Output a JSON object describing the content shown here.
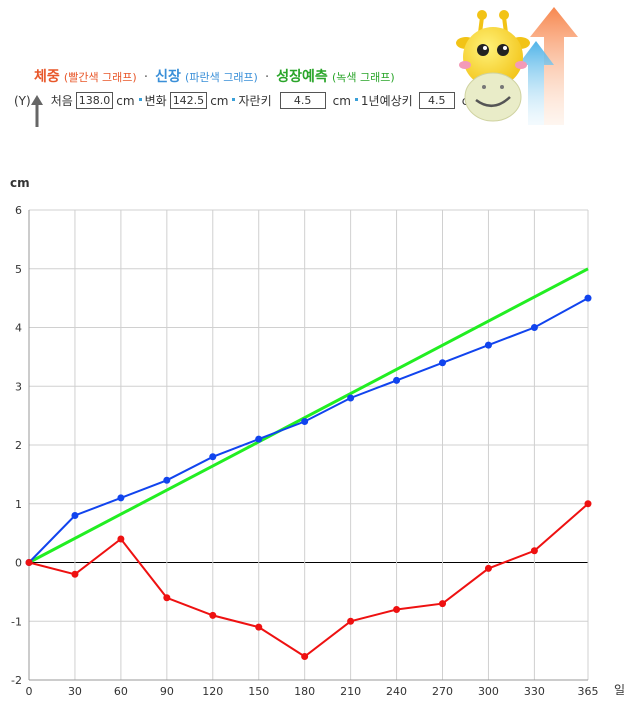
{
  "header": {
    "weight_title": "체중",
    "weight_sub": "(빨간색 그래프)",
    "height_title": "신장",
    "height_sub": "(파란색 그래프)",
    "forecast_title": "성장예측",
    "forecast_sub": "(녹색 그래프)",
    "separator": "·",
    "y_label": "(Y)",
    "start_label": "처음",
    "start_value": "138.0",
    "unit": "cm",
    "change_label": "변화",
    "change_value": "142.5",
    "grown_label": "자란키",
    "grown_value": "4.5",
    "year_label": "1년예상키",
    "year_value": "4.5"
  },
  "colors": {
    "weight": "#ee1111",
    "height": "#1144ee",
    "forecast": "#22ee22",
    "weight_title": "#e8572a",
    "height_title": "#3a8fd8",
    "forecast_title": "#2aa52a"
  },
  "chart_data": {
    "type": "line",
    "ylabel": "cm",
    "xlabel": "일",
    "xlim": [
      0,
      365
    ],
    "ylim": [
      -2,
      6
    ],
    "x_ticks": [
      0,
      30,
      60,
      90,
      120,
      150,
      180,
      210,
      240,
      270,
      300,
      330,
      365
    ],
    "y_ticks": [
      -2,
      -1,
      0,
      1,
      2,
      3,
      4,
      5,
      6
    ],
    "grid": true,
    "series": [
      {
        "key": "height",
        "x": [
          0,
          30,
          60,
          90,
          120,
          150,
          180,
          210,
          240,
          270,
          300,
          330,
          365
        ],
        "values": [
          0,
          0.8,
          1.1,
          1.4,
          1.8,
          2.1,
          2.4,
          2.8,
          3.1,
          3.4,
          3.7,
          4.0,
          4.5
        ]
      },
      {
        "key": "weight",
        "x": [
          0,
          30,
          60,
          90,
          120,
          150,
          180,
          210,
          240,
          270,
          300,
          330,
          365
        ],
        "values": [
          0,
          -0.2,
          0.4,
          -0.6,
          -0.9,
          -1.1,
          -1.6,
          -1.0,
          -0.8,
          -0.7,
          -0.1,
          0.2,
          1.0
        ]
      },
      {
        "key": "forecast",
        "x": [
          0,
          365
        ],
        "values": [
          0,
          5.0
        ]
      }
    ]
  }
}
